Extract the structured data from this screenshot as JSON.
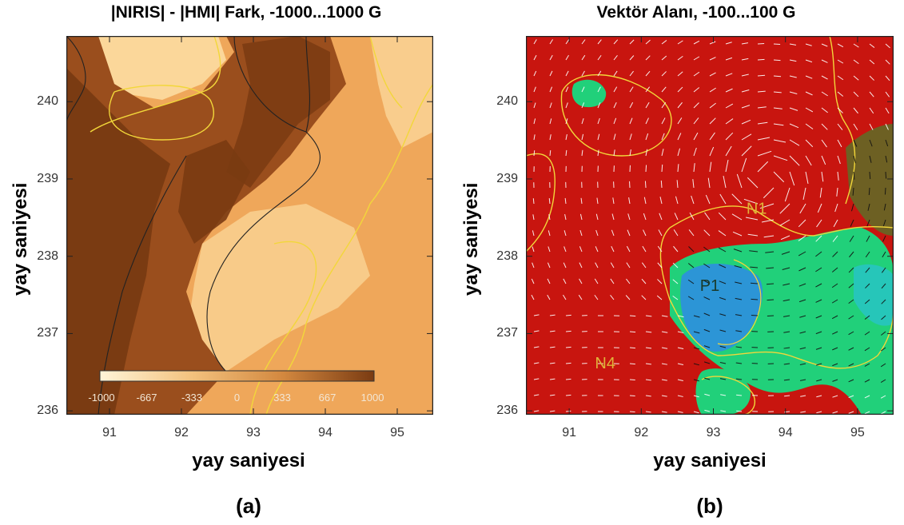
{
  "chart_data": [
    {
      "panel": "(a)",
      "type": "heatmap",
      "title": "|NIRIS| - |HMI| Fark, -1000...1000 G",
      "xlabel": "yay saniyesi",
      "ylabel": "yay saniyesi",
      "xlim": [
        90.4,
        95.5
      ],
      "ylim": [
        235.95,
        240.85
      ],
      "xticks": [
        "91",
        "92",
        "93",
        "94",
        "95"
      ],
      "xtick_values": [
        91,
        92,
        93,
        94,
        95
      ],
      "yticks": [
        "236",
        "237",
        "238",
        "239",
        "240"
      ],
      "ytick_values": [
        236,
        237,
        238,
        239,
        240
      ],
      "colorbar": {
        "range": [
          -1000,
          1000
        ],
        "ticks": [
          "-1000",
          "-667",
          "-333",
          "0",
          "333",
          "667",
          "1000"
        ],
        "colors": [
          "#fff4d8",
          "#f3c27e",
          "#d3883f",
          "#7a3b12"
        ]
      },
      "colors": {
        "background": "#efa75a",
        "dark": "#7a3b12",
        "light": "#fbd79a",
        "contour_yellow": "#f2d73a",
        "contour_black": "#222222"
      },
      "grid": false
    },
    {
      "panel": "(b)",
      "type": "heatmap",
      "title": "Vektör Alanı, -100...100 G",
      "xlabel": "yay saniyesi",
      "ylabel": "yay saniyesi",
      "xlim": [
        90.4,
        95.5
      ],
      "ylim": [
        235.95,
        240.85
      ],
      "xticks": [
        "91",
        "92",
        "93",
        "94",
        "95"
      ],
      "xtick_values": [
        91,
        92,
        93,
        94,
        95
      ],
      "yticks": [
        "236",
        "237",
        "238",
        "239",
        "240"
      ],
      "ytick_values": [
        236,
        237,
        238,
        239,
        240
      ],
      "annotations": [
        {
          "text": "N1",
          "x": 93.6,
          "y": 238.55
        },
        {
          "text": "P1",
          "x": 92.95,
          "y": 237.55
        },
        {
          "text": "N4",
          "x": 91.5,
          "y": 236.55
        }
      ],
      "colors": {
        "background": "#c8150f",
        "positive": "#21d07a",
        "strong_positive": "#2d8ee0",
        "vectors": "#ffffff",
        "contour_yellow": "#f2d73a"
      },
      "grid": false
    }
  ],
  "panel_labels": [
    "(a)",
    "(b)"
  ]
}
